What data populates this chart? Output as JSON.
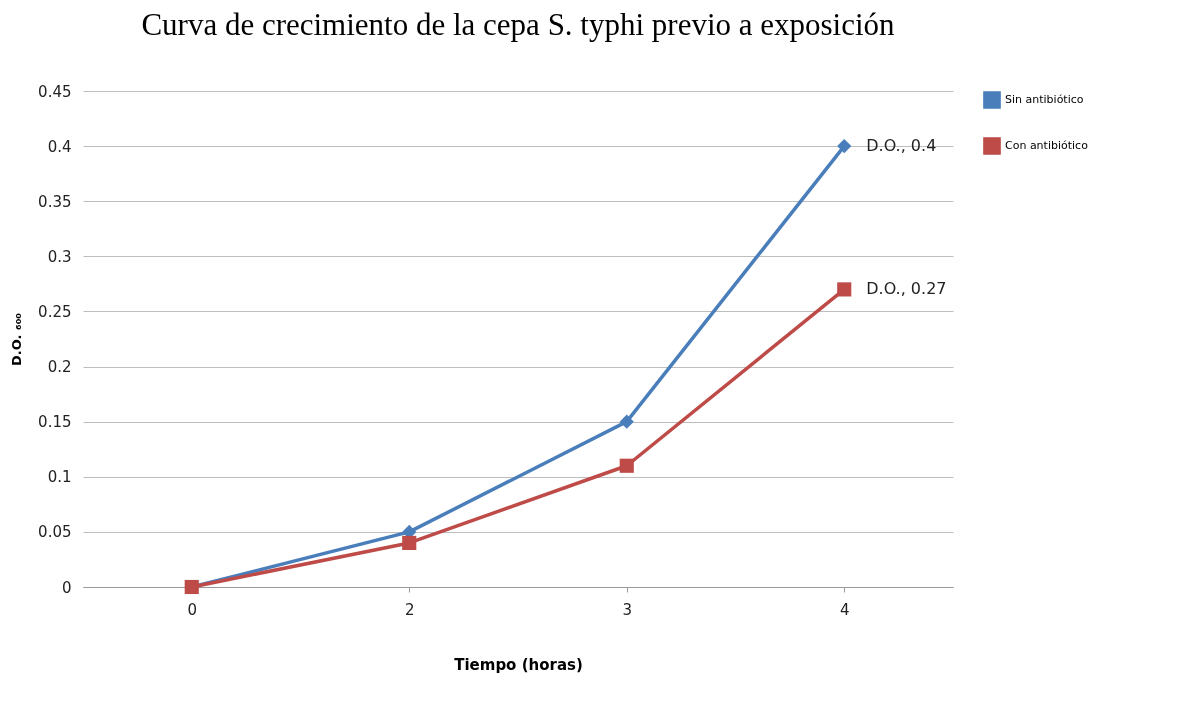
{
  "chart_data": {
    "type": "line",
    "title": "Curva de crecimiento de la cepa  S. typhi previo a exposición",
    "xlabel": "Tiempo (horas)",
    "ylabel": "D.O. ₆₀₀",
    "categories": [
      "0",
      "2",
      "3",
      "4"
    ],
    "series": [
      {
        "name": "Sin antibiótico",
        "color": "#4a7ebb",
        "marker": "diamond",
        "values": [
          0,
          0.05,
          0.15,
          0.4
        ]
      },
      {
        "name": "Con antibiótico",
        "color": "#be4b48",
        "marker": "square",
        "values": [
          0,
          0.04,
          0.11,
          0.27
        ]
      }
    ],
    "ylim": [
      0,
      0.45
    ],
    "yticks": [
      0,
      0.05,
      0.1,
      0.15,
      0.2,
      0.25,
      0.3,
      0.35,
      0.4,
      0.45
    ],
    "grid": "y",
    "legend": "right",
    "line_style": "solid",
    "annotations": [
      {
        "text": "D.O., 0.4",
        "x": "4",
        "y": 0.4
      },
      {
        "text": "D.O., 0.27",
        "x": "4",
        "y": 0.27
      }
    ]
  }
}
